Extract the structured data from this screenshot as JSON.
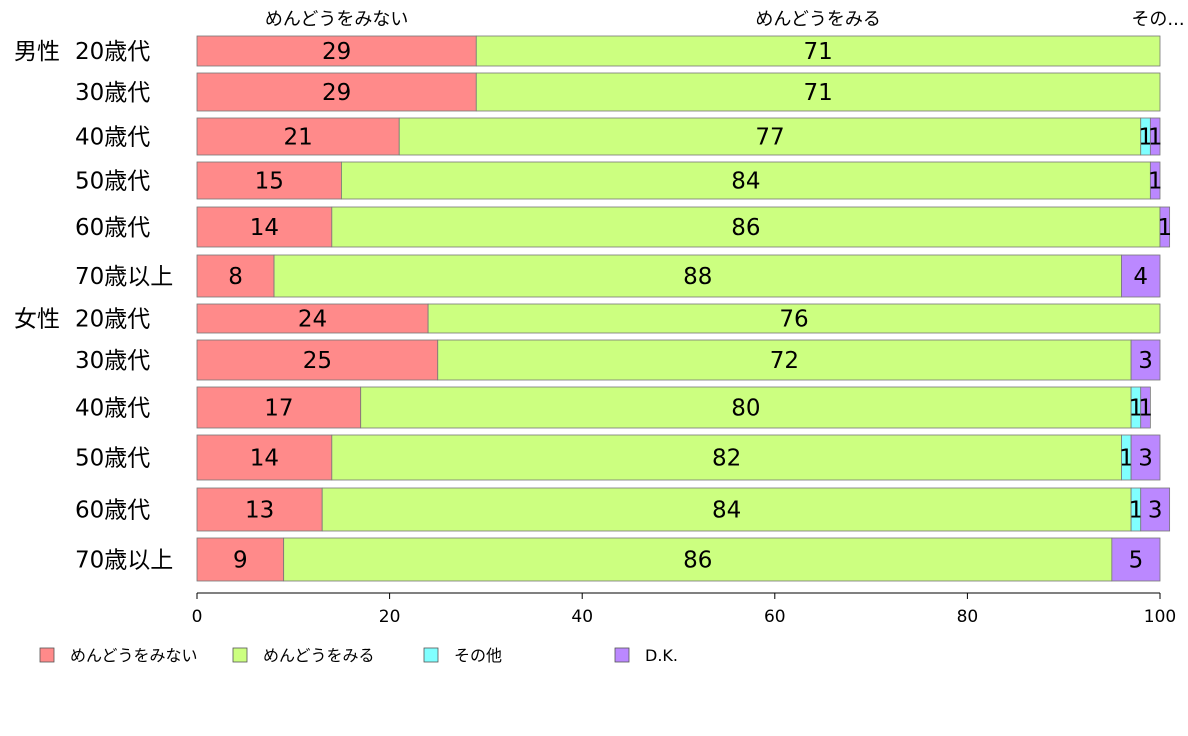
{
  "chart_data": {
    "type": "bar",
    "orientation": "horizontal",
    "stacked": true,
    "xlim": [
      0,
      100
    ],
    "x_ticks": [
      "0",
      "20",
      "40",
      "60",
      "80",
      "100"
    ],
    "top_labels": [
      "めんどうをみない",
      "めんどうをみる",
      "その..."
    ],
    "groups": [
      {
        "label": "男性",
        "categories": [
          "20歳代",
          "30歳代",
          "40歳代",
          "50歳代",
          "60歳代",
          "70歳以上"
        ]
      },
      {
        "label": "女性",
        "categories": [
          "20歳代",
          "30歳代",
          "40歳代",
          "50歳代",
          "60歳代",
          "70歳以上"
        ]
      }
    ],
    "series": [
      {
        "name": "めんどうをみない",
        "color": "#FF8A8A",
        "values": [
          29,
          29,
          21,
          15,
          14,
          8,
          24,
          25,
          17,
          14,
          13,
          9
        ]
      },
      {
        "name": "めんどうをみる",
        "color": "#CCFF80",
        "values": [
          71,
          71,
          77,
          84,
          86,
          88,
          76,
          72,
          80,
          82,
          84,
          86
        ]
      },
      {
        "name": "その他",
        "color": "#80FFFF",
        "values": [
          0,
          0,
          1,
          0,
          0,
          0,
          0,
          0,
          1,
          1,
          1,
          0
        ]
      },
      {
        "name": "D.K.",
        "color": "#BB88FF",
        "values": [
          0,
          0,
          1,
          1,
          1,
          4,
          0,
          3,
          1,
          3,
          3,
          5
        ]
      }
    ],
    "legend": [
      "めんどうをみない",
      "めんどうをみる",
      "その他",
      "D.K."
    ],
    "legend_position": "bottom-left",
    "grid": false
  }
}
